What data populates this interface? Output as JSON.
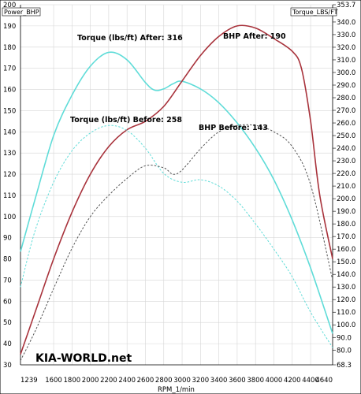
{
  "chart_data": {
    "type": "line",
    "xlabel": "RPM_1/min",
    "x_range": [
      1239,
      4640
    ],
    "x_ticks": [
      "1239",
      "1600",
      "1800",
      "2000",
      "2200",
      "2400",
      "2600",
      "2800",
      "3000",
      "3200",
      "3400",
      "3600",
      "3800",
      "4000",
      "4200",
      "4400",
      "4640"
    ],
    "left_axis": {
      "label": "Power_BHP",
      "range": [
        30,
        200
      ],
      "ticks": [
        "200",
        "190",
        "180",
        "170",
        "160",
        "150",
        "140",
        "130",
        "120",
        "110",
        "100",
        "90",
        "80",
        "70",
        "60",
        "50",
        "40",
        "30"
      ]
    },
    "right_axis": {
      "label": "Torque_LBS/FT",
      "range": [
        68.3,
        353.7
      ],
      "ticks": [
        "353.7",
        "340.0",
        "330.0",
        "320.0",
        "310.0",
        "300.0",
        "290.0",
        "280.0",
        "270.0",
        "260.0",
        "250.0",
        "240.0",
        "230.0",
        "220.0",
        "210.0",
        "200.0",
        "190.0",
        "180.0",
        "170.0",
        "160.0",
        "150.0",
        "140.0",
        "130.0",
        "120.0",
        "110.0",
        "100.0",
        "90.0",
        "80.0",
        "68.3"
      ]
    },
    "annotations": {
      "torque_after": "Torque (lbs/ft) After: 316",
      "bhp_after": "BHP After: 190",
      "torque_before": "Torque (lbs/ft) Before: 258",
      "bhp_before": "BHP Before: 143"
    },
    "series": [
      {
        "key": "torque_after",
        "axis": "right",
        "color": "#5fdcd8",
        "style": "solid",
        "points": [
          [
            1239,
            158
          ],
          [
            1400,
            200
          ],
          [
            1600,
            250
          ],
          [
            1800,
            282
          ],
          [
            2000,
            305
          ],
          [
            2200,
            316
          ],
          [
            2400,
            310
          ],
          [
            2600,
            292
          ],
          [
            2700,
            286
          ],
          [
            2800,
            287
          ],
          [
            2900,
            291
          ],
          [
            3000,
            293
          ],
          [
            3200,
            287
          ],
          [
            3400,
            276
          ],
          [
            3600,
            260
          ],
          [
            3800,
            240
          ],
          [
            4000,
            215
          ],
          [
            4200,
            183
          ],
          [
            4400,
            145
          ],
          [
            4640,
            93
          ]
        ]
      },
      {
        "key": "bhp_after",
        "axis": "left",
        "color": "#a8323b",
        "style": "solid",
        "points": [
          [
            1239,
            35
          ],
          [
            1400,
            55
          ],
          [
            1600,
            80
          ],
          [
            1800,
            102
          ],
          [
            2000,
            120
          ],
          [
            2200,
            133
          ],
          [
            2400,
            141
          ],
          [
            2600,
            145
          ],
          [
            2800,
            152
          ],
          [
            3000,
            164
          ],
          [
            3200,
            176
          ],
          [
            3400,
            185
          ],
          [
            3600,
            190
          ],
          [
            3800,
            189
          ],
          [
            4000,
            184
          ],
          [
            4200,
            178
          ],
          [
            4300,
            170
          ],
          [
            4400,
            145
          ],
          [
            4500,
            110
          ],
          [
            4640,
            80
          ]
        ]
      },
      {
        "key": "torque_before",
        "axis": "right",
        "color": "#5fdcd8",
        "style": "dashed",
        "points": [
          [
            1239,
            130
          ],
          [
            1400,
            175
          ],
          [
            1600,
            213
          ],
          [
            1800,
            238
          ],
          [
            2000,
            252
          ],
          [
            2200,
            258
          ],
          [
            2400,
            254
          ],
          [
            2600,
            240
          ],
          [
            2800,
            220
          ],
          [
            3000,
            213
          ],
          [
            3200,
            215
          ],
          [
            3400,
            210
          ],
          [
            3600,
            198
          ],
          [
            3800,
            180
          ],
          [
            4000,
            160
          ],
          [
            4200,
            138
          ],
          [
            4400,
            110
          ],
          [
            4640,
            82
          ]
        ]
      },
      {
        "key": "bhp_before",
        "axis": "left",
        "color": "#555555",
        "style": "dashed",
        "points": [
          [
            1239,
            32
          ],
          [
            1400,
            46
          ],
          [
            1600,
            66
          ],
          [
            1800,
            85
          ],
          [
            2000,
            100
          ],
          [
            2200,
            110
          ],
          [
            2400,
            118
          ],
          [
            2600,
            124
          ],
          [
            2800,
            123
          ],
          [
            2900,
            120
          ],
          [
            3000,
            122
          ],
          [
            3200,
            132
          ],
          [
            3400,
            140
          ],
          [
            3600,
            143
          ],
          [
            3800,
            143
          ],
          [
            4000,
            140
          ],
          [
            4200,
            133
          ],
          [
            4400,
            115
          ],
          [
            4640,
            70
          ]
        ]
      }
    ]
  },
  "watermark": "KIA-WORLD.net"
}
